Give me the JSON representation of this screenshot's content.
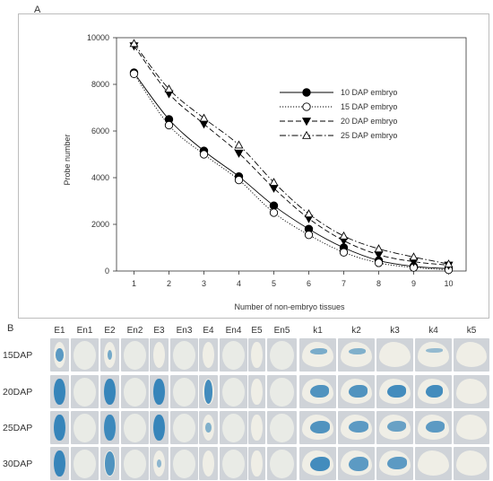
{
  "panels": {
    "a": "A",
    "b": "B"
  },
  "chart_data": {
    "type": "line",
    "title": "",
    "xlabel": "Number of non-embryo tissues",
    "ylabel": "Probe number",
    "x": [
      1,
      2,
      3,
      4,
      5,
      6,
      7,
      8,
      9,
      10
    ],
    "xlim": [
      0.5,
      10.5
    ],
    "ylim": [
      0,
      10000
    ],
    "yticks": [
      0,
      2000,
      4000,
      6000,
      8000,
      10000
    ],
    "xticks": [
      1,
      2,
      3,
      4,
      5,
      6,
      7,
      8,
      9,
      10
    ],
    "grid": false,
    "legend_position": "right",
    "series": [
      {
        "name": "10 DAP embryo",
        "marker": "filled-circle",
        "dash": "solid",
        "values": [
          8500,
          6500,
          5150,
          4050,
          2800,
          1800,
          1000,
          450,
          200,
          100
        ]
      },
      {
        "name": "15 DAP embryo",
        "marker": "open-circle",
        "dash": "dotted",
        "values": [
          8450,
          6250,
          5000,
          3900,
          2500,
          1550,
          800,
          350,
          150,
          50
        ]
      },
      {
        "name": "20 DAP embryo",
        "marker": "filled-triangle-down",
        "dash": "dashed",
        "values": [
          9650,
          7600,
          6300,
          5050,
          3550,
          2250,
          1300,
          700,
          400,
          250
        ]
      },
      {
        "name": "25 DAP embryo",
        "marker": "open-triangle-up",
        "dash": "dashdot",
        "values": [
          9750,
          7800,
          6550,
          5400,
          3800,
          2450,
          1500,
          950,
          600,
          300
        ]
      }
    ]
  },
  "grid": {
    "columns": [
      "E1",
      "En1",
      "E2",
      "En2",
      "E3",
      "En3",
      "E4",
      "En4",
      "E5",
      "En5",
      "k1",
      "k2",
      "k3",
      "k4",
      "k5"
    ],
    "rows": [
      "15DAP",
      "20DAP",
      "25DAP",
      "30DAP"
    ],
    "stain_color": "#1f78b4",
    "tissue_color": "#efeee6",
    "background_color": "#cfd3d8"
  }
}
